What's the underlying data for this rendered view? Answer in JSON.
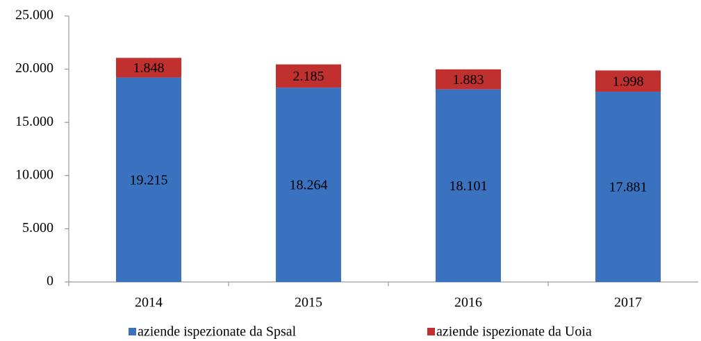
{
  "chart_data": {
    "type": "stacked_bar",
    "categories": [
      "2014",
      "2015",
      "2016",
      "2017"
    ],
    "series": [
      {
        "name": "aziende ispezionate da Spsal",
        "color": "#3a72c0",
        "values": [
          19215,
          18264,
          18101,
          17881
        ],
        "value_labels": [
          "19.215",
          "18.264",
          "18.101",
          "17.881"
        ]
      },
      {
        "name": "aziende ispezionate da Uoia",
        "color": "#c0302e",
        "values": [
          1848,
          2185,
          1883,
          1998
        ],
        "value_labels": [
          "1.848",
          "2.185",
          "1.883",
          "1.998"
        ]
      }
    ],
    "ylim": [
      0,
      25000
    ],
    "yticks": [
      0,
      {
        "value": 5000,
        "label": "5.000"
      },
      {
        "value": 10000,
        "label": "10.000"
      },
      {
        "value": 15000,
        "label": "15.000"
      },
      {
        "value": 20000,
        "label": "20.000"
      },
      {
        "value": 25000,
        "label": "25.000"
      }
    ],
    "legend": "bottom"
  }
}
